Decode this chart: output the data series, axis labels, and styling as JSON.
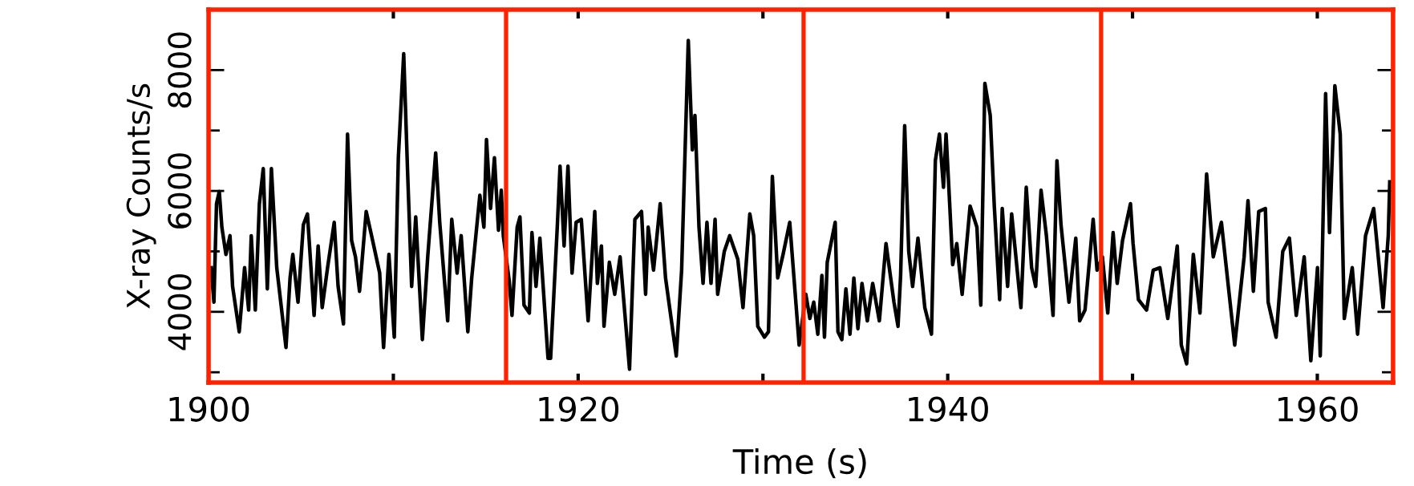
{
  "chart_data": {
    "type": "line",
    "xlabel": "Time (s)",
    "ylabel": "X-ray Counts/s",
    "xlim": [
      1900,
      1964.1
    ],
    "ylim": [
      2830,
      9000
    ],
    "xticks": [
      1900,
      {
        "value": 1910,
        "label": null
      },
      1920,
      {
        "value": 1930,
        "label": null
      },
      1940,
      {
        "value": 1950,
        "label": null
      },
      1960
    ],
    "yticks": [
      {
        "value": 3000,
        "label": null
      },
      4000,
      {
        "value": 5000,
        "label": null
      },
      6000,
      {
        "value": 7000,
        "label": null
      },
      8000
    ],
    "grid": false,
    "legend": false,
    "marker": "none",
    "line_style": "solid",
    "ref_lines": [
      {
        "axis": "x",
        "value": 1916.1,
        "color": "#ff2200"
      },
      {
        "axis": "x",
        "value": 1932.2,
        "color": "#ff2200"
      },
      {
        "axis": "x",
        "value": 1948.3,
        "color": "#ff2200"
      }
    ],
    "series": [
      {
        "color": "#000000",
        "x": [
          1900.14,
          1900.29,
          1900.43,
          1900.58,
          1900.72,
          1900.94,
          1901.16,
          1901.3,
          1901.66,
          1901.95,
          1902.17,
          1902.31,
          1902.53,
          1902.75,
          1902.96,
          1903.18,
          1903.4,
          1903.69,
          1904.19,
          1904.41,
          1904.56,
          1904.84,
          1905.13,
          1905.35,
          1905.71,
          1905.93,
          1906.15,
          1906.44,
          1906.8,
          1907.01,
          1907.3,
          1907.52,
          1907.74,
          1907.95,
          1908.17,
          1908.53,
          1908.82,
          1909.26,
          1909.47,
          1909.76,
          1910.05,
          1910.27,
          1910.56,
          1910.77,
          1910.99,
          1911.21,
          1911.57,
          1911.86,
          1912.29,
          1912.51,
          1912.94,
          1913.16,
          1913.45,
          1913.67,
          1914.03,
          1914.24,
          1914.68,
          1914.9,
          1915.04,
          1915.26,
          1915.47,
          1915.69,
          1915.84,
          1915.95,
          1916.27,
          1916.42,
          1916.7,
          1916.85,
          1917.07,
          1917.36,
          1917.5,
          1917.72,
          1917.93,
          1918.37,
          1918.51,
          1918.87,
          1919.02,
          1919.24,
          1919.45,
          1919.67,
          1919.89,
          1920.17,
          1920.54,
          1920.9,
          1921.04,
          1921.26,
          1921.4,
          1921.69,
          1921.98,
          1922.27,
          1922.78,
          1923.07,
          1923.43,
          1923.65,
          1923.79,
          1924.08,
          1924.44,
          1924.73,
          1925.31,
          1925.6,
          1925.96,
          1926.18,
          1926.32,
          1926.54,
          1926.76,
          1926.97,
          1927.19,
          1927.41,
          1927.55,
          1927.91,
          1928.2,
          1928.64,
          1928.92,
          1929.29,
          1929.5,
          1929.72,
          1930.08,
          1930.3,
          1930.51,
          1930.8,
          1931.09,
          1931.45,
          1931.67,
          1931.96,
          1932.32,
          1932.54,
          1932.75,
          1932.97,
          1933.19,
          1933.33,
          1933.48,
          1933.91,
          1934.06,
          1934.27,
          1934.49,
          1934.71,
          1934.92,
          1935.14,
          1935.36,
          1935.65,
          1935.94,
          1936.3,
          1936.66,
          1937.09,
          1937.31,
          1937.45,
          1937.67,
          1937.89,
          1938.1,
          1938.39,
          1938.76,
          1939.12,
          1939.33,
          1939.55,
          1939.77,
          1939.91,
          1940.06,
          1940.27,
          1940.49,
          1940.78,
          1941.21,
          1941.58,
          1941.79,
          1942.01,
          1942.3,
          1942.52,
          1942.81,
          1942.95,
          1943.24,
          1943.46,
          1943.96,
          1944.25,
          1944.54,
          1944.76,
          1945.05,
          1945.34,
          1945.7,
          1945.91,
          1946.13,
          1946.56,
          1946.93,
          1947.14,
          1947.43,
          1947.87,
          1948.08,
          1948.37,
          1948.66,
          1948.95,
          1949.17,
          1949.46,
          1949.89,
          1950.03,
          1950.32,
          1950.76,
          1951.12,
          1951.48,
          1951.91,
          1952.42,
          1952.64,
          1952.93,
          1953.29,
          1953.65,
          1954.01,
          1954.37,
          1954.81,
          1955.53,
          1956.04,
          1956.25,
          1956.54,
          1956.83,
          1957.19,
          1957.34,
          1957.77,
          1958.13,
          1958.49,
          1958.86,
          1959.29,
          1959.65,
          1960.01,
          1960.16,
          1960.45,
          1960.66,
          1960.95,
          1961.24,
          1961.46,
          1961.89,
          1962.18,
          1962.61,
          1963.05,
          1963.56,
          1963.84,
          1963.92
        ],
        "values": [
          4730,
          4160,
          5790,
          5990,
          5400,
          4950,
          5260,
          4420,
          3670,
          4730,
          4030,
          5260,
          4030,
          5790,
          6370,
          4380,
          6370,
          4730,
          3410,
          4560,
          4950,
          4160,
          5440,
          5620,
          3940,
          5090,
          4070,
          4730,
          5480,
          4420,
          3800,
          6940,
          5180,
          4910,
          4340,
          5660,
          5260,
          4640,
          3410,
          4950,
          3580,
          6550,
          8270,
          6320,
          4420,
          5570,
          3540,
          4910,
          6630,
          5480,
          3850,
          5530,
          4640,
          5260,
          3670,
          4560,
          5930,
          5400,
          6850,
          5710,
          6550,
          5350,
          6010,
          5260,
          4510,
          3940,
          5400,
          5570,
          4110,
          3980,
          5310,
          4420,
          5220,
          3230,
          3230,
          5400,
          6410,
          5090,
          6410,
          4640,
          5480,
          5530,
          3850,
          5660,
          4470,
          5090,
          3760,
          4820,
          4290,
          4910,
          3050,
          5530,
          5660,
          4290,
          5400,
          4690,
          5790,
          4560,
          3270,
          4690,
          8490,
          6680,
          7250,
          5400,
          4470,
          5480,
          4470,
          5530,
          4290,
          5000,
          5260,
          4870,
          4070,
          5620,
          5260,
          3760,
          3580,
          3670,
          6240,
          4560,
          4950,
          5480,
          4600,
          3450,
          4290,
          3890,
          4160,
          3630,
          4600,
          3580,
          4820,
          5480,
          3670,
          3540,
          4380,
          3630,
          4560,
          3720,
          4470,
          3850,
          4470,
          3850,
          5130,
          4160,
          3760,
          4600,
          7080,
          5000,
          4420,
          5220,
          4070,
          3630,
          6500,
          6940,
          6060,
          6940,
          6060,
          4780,
          5130,
          4290,
          5750,
          5400,
          4110,
          7780,
          7250,
          5750,
          4200,
          5710,
          4420,
          5620,
          4070,
          6060,
          4730,
          4420,
          6010,
          5260,
          3940,
          6500,
          5440,
          4160,
          5220,
          3850,
          4030,
          5530,
          4690,
          4910,
          3980,
          5310,
          4470,
          5180,
          5790,
          5130,
          4200,
          4030,
          4690,
          4730,
          3890,
          5090,
          3450,
          3140,
          4950,
          3980,
          6280,
          4910,
          5480,
          3450,
          4910,
          5840,
          4340,
          5660,
          5710,
          4160,
          3580,
          5000,
          5220,
          3940,
          4910,
          3190,
          4730,
          3270,
          7610,
          5310,
          7740,
          6940,
          3890,
          4730,
          3630,
          5260,
          5710,
          4070,
          5260,
          6150
        ]
      }
    ]
  }
}
